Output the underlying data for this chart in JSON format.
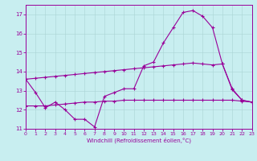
{
  "xlabel": "Windchill (Refroidissement éolien,°C)",
  "background_color": "#c8eef0",
  "line_color": "#990099",
  "grid_color": "#aad4d4",
  "xlim": [
    0,
    23
  ],
  "ylim": [
    11,
    17.5
  ],
  "yticks": [
    11,
    12,
    13,
    14,
    15,
    16,
    17
  ],
  "xticks": [
    0,
    1,
    2,
    3,
    4,
    5,
    6,
    7,
    8,
    9,
    10,
    11,
    12,
    13,
    14,
    15,
    16,
    17,
    18,
    19,
    20,
    21,
    22,
    23
  ],
  "s1_x": [
    0,
    1,
    2,
    3,
    4,
    5,
    6,
    7,
    8,
    9,
    10,
    11,
    12,
    13,
    14,
    15,
    16,
    17,
    18,
    19,
    20,
    21,
    22,
    23
  ],
  "s1_y": [
    13.6,
    12.9,
    12.1,
    12.4,
    12.0,
    11.5,
    11.5,
    11.1,
    12.7,
    12.9,
    13.1,
    13.1,
    14.3,
    14.5,
    15.5,
    16.3,
    17.1,
    17.2,
    16.9,
    16.3,
    14.4,
    13.1,
    12.5,
    12.4
  ],
  "s2_x": [
    0,
    1,
    2,
    3,
    4,
    5,
    6,
    7,
    8,
    9,
    10,
    11,
    12,
    13,
    14,
    15,
    16,
    17,
    18,
    19,
    20,
    21,
    22,
    23
  ],
  "s2_y": [
    12.2,
    12.2,
    12.2,
    12.25,
    12.3,
    12.35,
    12.4,
    12.4,
    12.45,
    12.45,
    12.5,
    12.5,
    12.5,
    12.5,
    12.5,
    12.5,
    12.5,
    12.5,
    12.5,
    12.5,
    12.5,
    12.5,
    12.45,
    12.4
  ],
  "s3_x": [
    0,
    1,
    2,
    3,
    4,
    5,
    6,
    7,
    8,
    9,
    10,
    11,
    12,
    13,
    14,
    15,
    16,
    17,
    18,
    19,
    20,
    21,
    22,
    23
  ],
  "s3_y": [
    13.6,
    13.65,
    13.7,
    13.75,
    13.8,
    13.85,
    13.9,
    13.95,
    14.0,
    14.05,
    14.1,
    14.15,
    14.2,
    14.25,
    14.3,
    14.35,
    14.4,
    14.45,
    14.4,
    14.35,
    14.4,
    13.05,
    12.5,
    12.4
  ]
}
